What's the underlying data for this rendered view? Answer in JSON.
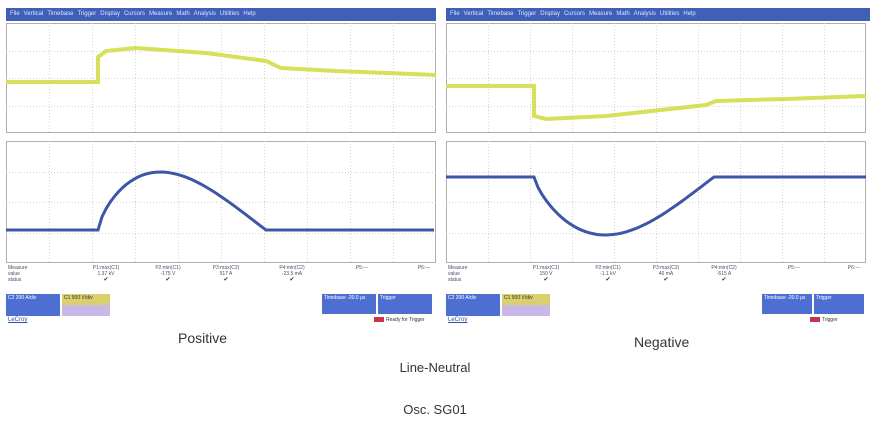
{
  "menubar": {
    "items": [
      "File",
      "Vertical",
      "Timebase",
      "Trigger",
      "Display",
      "Cursors",
      "Measure",
      "Math",
      "Analysis",
      "Utilities",
      "Help"
    ]
  },
  "colors": {
    "menubar": "#3f5fb8",
    "voltage_trace": "#d6e05a",
    "current_trace": "#3d57a6",
    "grid": "#c9c9c9"
  },
  "scopes": {
    "left": {
      "caption": "Positive",
      "meas_head": [
        "Measure",
        "value",
        "status"
      ],
      "params": [
        {
          "label": "P1:max(C1)",
          "value": "1.37 kV"
        },
        {
          "label": "P2:min(C1)",
          "value": "-175 V"
        },
        {
          "label": "P3:max(C2)",
          "value": "517 A"
        },
        {
          "label": "P4:min(C2)",
          "value": "-23.5 mA"
        },
        {
          "label": "P5:---",
          "value": ""
        },
        {
          "label": "P6:---",
          "value": ""
        }
      ],
      "ch_a": "C1 500 V/div",
      "ch_b": "C2 200 A/div",
      "timebase": "Timebase  -20.0 µs",
      "trigger": "Trigger",
      "brand": "LeCroy",
      "trig_note": "Ready for Trigger"
    },
    "right": {
      "caption": "Negative",
      "meas_head": [
        "Measure",
        "value",
        "status"
      ],
      "params": [
        {
          "label": "P1:max(C1)",
          "value": "150 V"
        },
        {
          "label": "P2:min(C1)",
          "value": "-1.1 kV"
        },
        {
          "label": "P3:max(C2)",
          "value": "46 mA"
        },
        {
          "label": "P4:min(C2)",
          "value": "-515 A"
        },
        {
          "label": "P5:---",
          "value": ""
        },
        {
          "label": "P6:---",
          "value": ""
        }
      ],
      "ch_a": "C1 500 V/div",
      "ch_b": "C2 200 A/div",
      "timebase": "Timebase  -20.0 µs",
      "trigger": "Trigger",
      "brand": "LeCroy",
      "trig_note": "Trigger"
    }
  },
  "line_label": "Line-Neutral",
  "osc_label": "Osc. SG01"
}
